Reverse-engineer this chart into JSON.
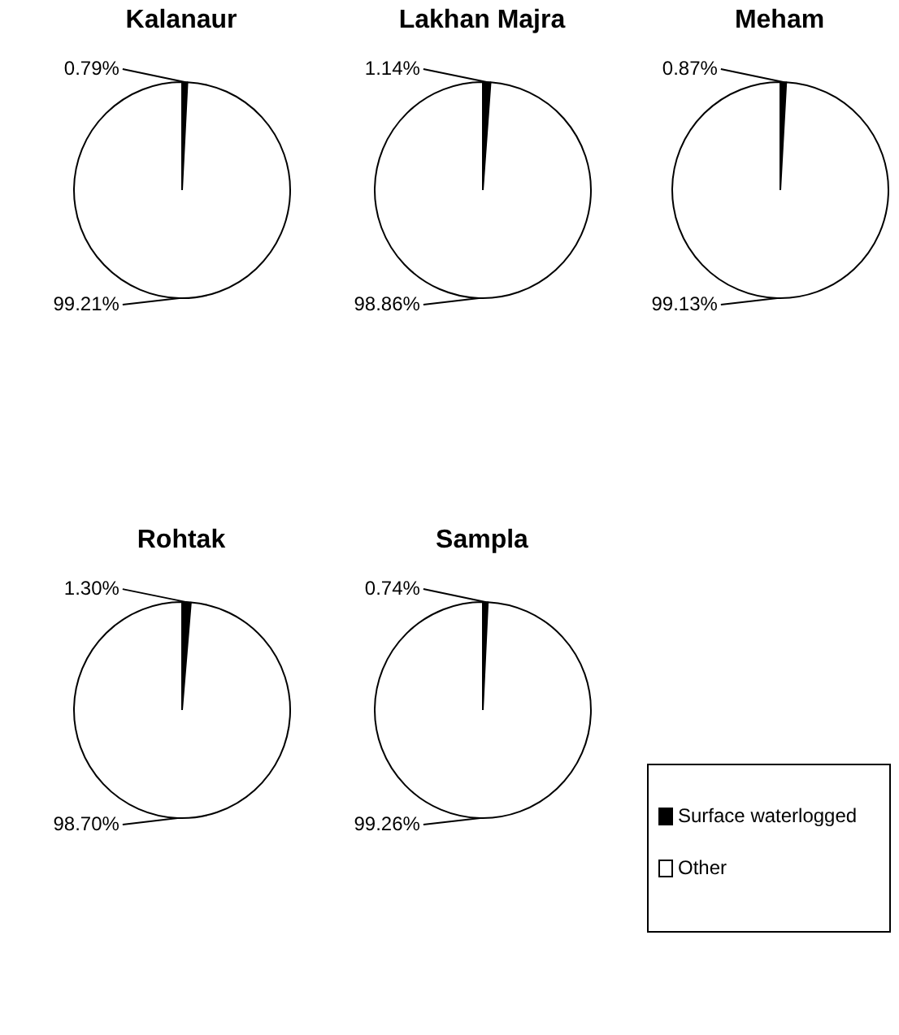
{
  "chart_data": [
    {
      "type": "pie",
      "title": "Kalanaur",
      "categories": [
        "Surface waterlogged",
        "Other"
      ],
      "values": [
        0.79,
        99.21
      ],
      "value_labels": [
        "0.79%",
        "99.21%"
      ],
      "colors": [
        "#000000",
        "#ffffff"
      ],
      "legend": "bottom right"
    },
    {
      "type": "pie",
      "title": "Lakhan Majra",
      "categories": [
        null,
        null
      ],
      "values": [
        1.14,
        98.86
      ],
      "value_labels": [
        "1.14%",
        "98.86%"
      ],
      "colors": [
        "#000000",
        "#ffffff"
      ]
    },
    {
      "type": "pie",
      "title": "Meham",
      "categories": [
        null,
        null
      ],
      "values": [
        0.87,
        99.13
      ],
      "value_labels": [
        "0.87%",
        "99.13%"
      ],
      "colors": [
        "#000000",
        "#ffffff"
      ]
    },
    {
      "type": "pie",
      "title": "Rohtak",
      "categories": [
        null,
        null
      ],
      "values": [
        1.3,
        98.7
      ],
      "value_labels": [
        "1.30%",
        "98.70%"
      ],
      "colors": [
        "#000000",
        "#ffffff"
      ]
    },
    {
      "type": "pie",
      "title": "Sampla",
      "categories": [
        null,
        null
      ],
      "values": [
        0.74,
        99.26
      ],
      "value_labels": [
        "0.74%",
        "99.26%"
      ],
      "colors": [
        "#000000",
        "#ffffff"
      ]
    }
  ]
}
